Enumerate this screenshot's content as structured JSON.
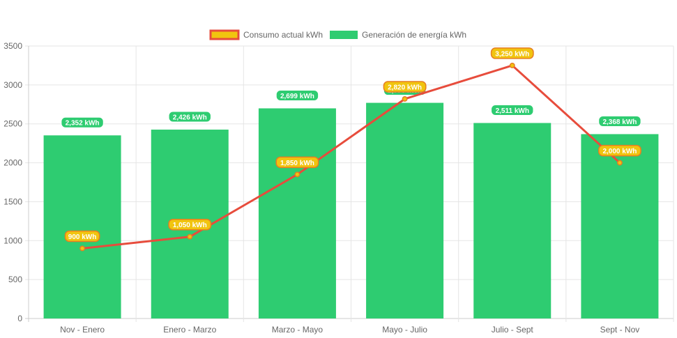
{
  "chart_data": {
    "type": "bar",
    "categories": [
      "Nov - Enero",
      "Enero - Marzo",
      "Marzo - Mayo",
      "Mayo - Julio",
      "Julio - Sept",
      "Sept - Nov"
    ],
    "series": [
      {
        "name": "Consumo actual kWh",
        "type": "line",
        "values": [
          900,
          1050,
          1850,
          2820,
          3250,
          2000
        ],
        "labels": [
          "900 kWh",
          "1,050 kWh",
          "1,850 kWh",
          "2,820 kWh",
          "3,250 kWh",
          "2,000 kWh"
        ],
        "color": "#e74c3c",
        "label_bg": "#f1c40f",
        "label_border": "#e67e22"
      },
      {
        "name": "Generación de energía kWh",
        "type": "bar",
        "values": [
          2352,
          2426,
          2699,
          2770,
          2511,
          2368
        ],
        "labels": [
          "2,352 kWh",
          "2,426 kWh",
          "2,699 kWh",
          "2,770 kWh",
          "2,511 kWh",
          "2,368 kWh"
        ],
        "color": "#2ecc71"
      }
    ],
    "yticks": [
      "0",
      "500",
      "1000",
      "1500",
      "2000",
      "2500",
      "3000",
      "3500"
    ],
    "ylim": [
      0,
      3500
    ],
    "grid": true,
    "legend": "top-center",
    "title": "",
    "xlabel": "",
    "ylabel": ""
  }
}
